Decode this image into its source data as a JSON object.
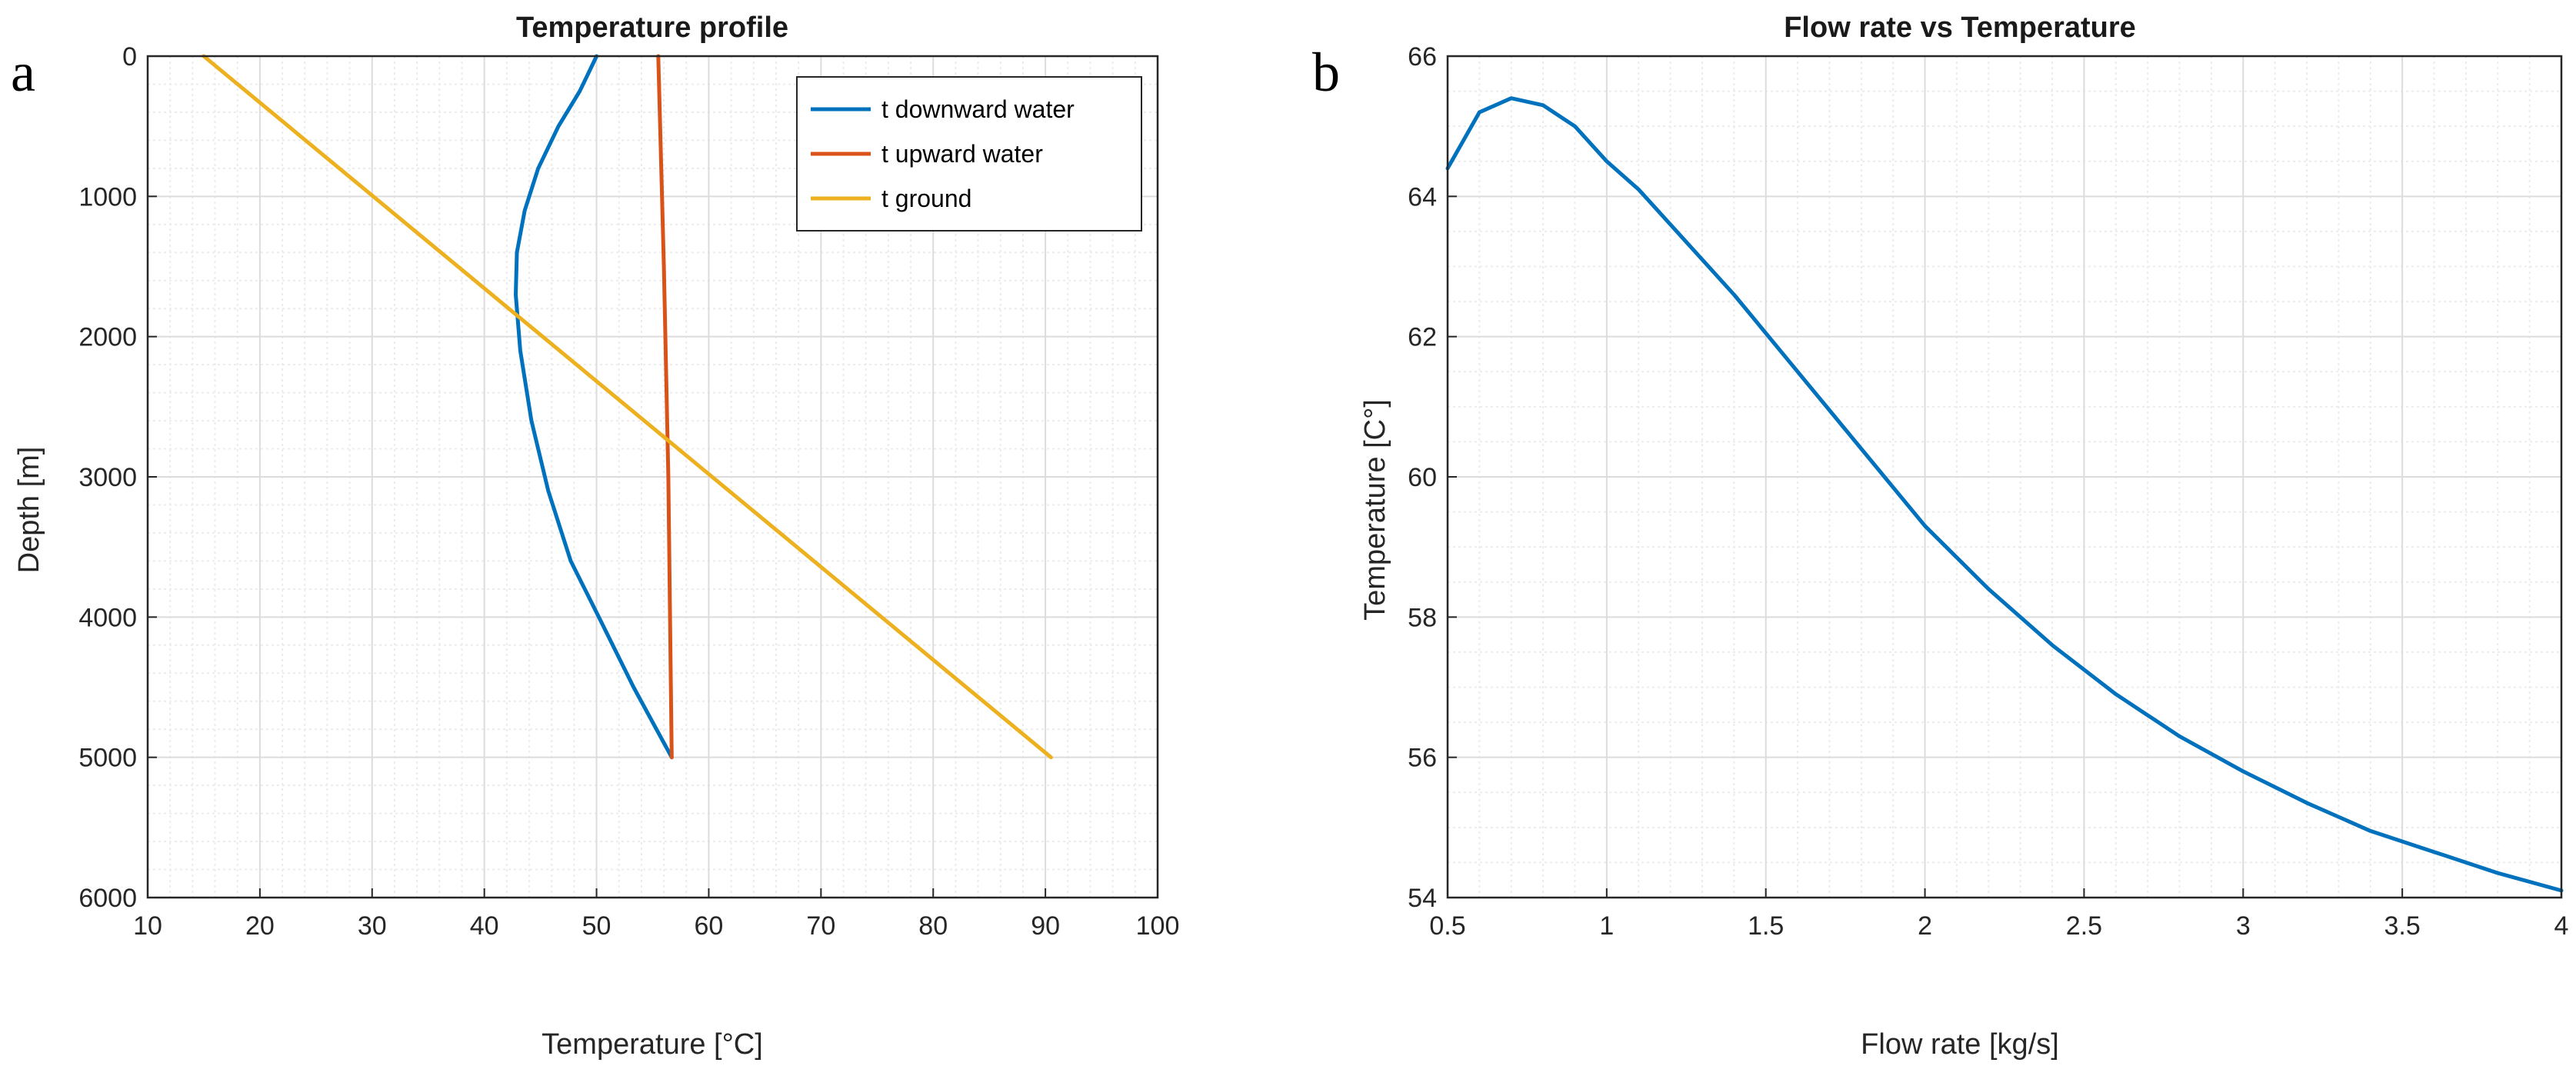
{
  "panel_labels": [
    "a",
    "b"
  ],
  "colors": {
    "downward": "#0072BD",
    "upward": "#D95319",
    "ground": "#EDB120",
    "grid_major": "#dcdcdc",
    "grid_minor": "#ececec",
    "axis": "#262626"
  },
  "chart_data": [
    {
      "type": "line",
      "title": "Temperature profile",
      "xlabel": "Temperature [°C]",
      "ylabel": "Depth [m]",
      "xlim": [
        10,
        100
      ],
      "ylim": [
        0,
        6000
      ],
      "y_reversed": true,
      "x_ticks": [
        10,
        20,
        30,
        40,
        50,
        60,
        70,
        80,
        90,
        100
      ],
      "y_ticks": [
        0,
        1000,
        2000,
        3000,
        4000,
        5000,
        6000
      ],
      "grid": true,
      "minor_grid": true,
      "legend_position": "top-right",
      "series": [
        {
          "name": "t downward water",
          "color": "#0072BD",
          "x": [
            50,
            48.5,
            46.6,
            44.8,
            43.6,
            42.9,
            42.8,
            43.2,
            44.2,
            45.7,
            47.7,
            50.2,
            53.3,
            56.7
          ],
          "y": [
            0,
            250,
            500,
            800,
            1100,
            1400,
            1700,
            2100,
            2600,
            3100,
            3600,
            4000,
            4500,
            5000
          ]
        },
        {
          "name": "t upward water",
          "color": "#D95319",
          "x": [
            55.5,
            56.0,
            56.4,
            56.7
          ],
          "y": [
            0,
            1500,
            3000,
            5000
          ]
        },
        {
          "name": "t ground",
          "color": "#EDB120",
          "x": [
            15,
            90.5
          ],
          "y": [
            0,
            5000
          ]
        }
      ]
    },
    {
      "type": "line",
      "title": "Flow rate vs Temperature",
      "xlabel": "Flow rate [kg/s]",
      "ylabel": "Temperature [C°]",
      "xlim": [
        0.5,
        4
      ],
      "ylim": [
        54,
        66
      ],
      "x_ticks": [
        "0.5",
        "1",
        "1.5",
        "2",
        "2.5",
        "3",
        "3.5",
        "4"
      ],
      "y_ticks": [
        "54",
        "56",
        "58",
        "60",
        "62",
        "64",
        "66"
      ],
      "grid": true,
      "minor_grid": true,
      "series": [
        {
          "name": "Temperature",
          "color": "#0072BD",
          "x": [
            0.5,
            0.6,
            0.7,
            0.8,
            0.9,
            1.0,
            1.1,
            1.2,
            1.4,
            1.6,
            1.8,
            2.0,
            2.2,
            2.4,
            2.6,
            2.8,
            3.0,
            3.2,
            3.4,
            3.6,
            3.8,
            4.0
          ],
          "y": [
            64.4,
            65.2,
            65.4,
            65.3,
            65.0,
            64.5,
            64.1,
            63.6,
            62.6,
            61.5,
            60.4,
            59.3,
            58.4,
            57.6,
            56.9,
            56.3,
            55.8,
            55.35,
            54.95,
            54.65,
            54.35,
            54.1
          ]
        }
      ]
    }
  ]
}
